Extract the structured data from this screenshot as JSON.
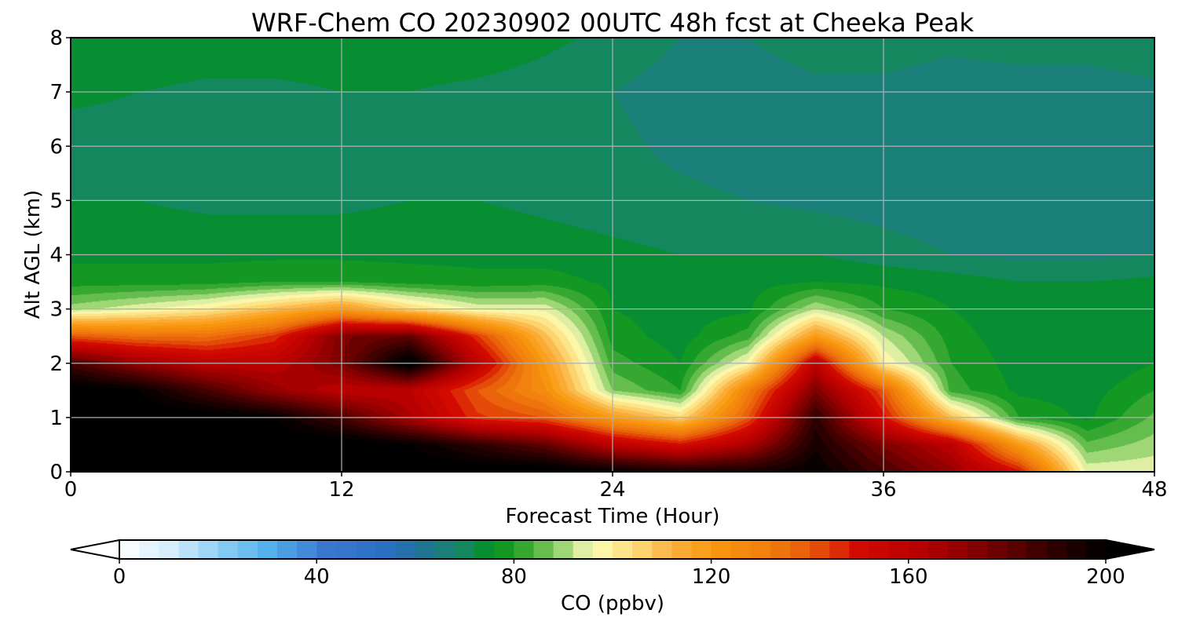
{
  "chart_data": {
    "type": "heatmap",
    "title": "WRF-Chem CO  20230902 00UTC 48h fcst at Cheeka Peak",
    "xlabel": "Forecast Time (Hour)",
    "ylabel": "Alt AGL (km)",
    "xlim": [
      0,
      48
    ],
    "ylim": [
      0,
      8
    ],
    "xticks": [
      0,
      12,
      24,
      36,
      48
    ],
    "yticks": [
      0,
      1,
      2,
      3,
      4,
      5,
      6,
      7,
      8
    ],
    "grid": true,
    "x": [
      0,
      3,
      6,
      9,
      12,
      15,
      18,
      21,
      24,
      27,
      30,
      33,
      36,
      39,
      42,
      45,
      48
    ],
    "y": [
      0,
      0.5,
      1,
      1.5,
      2,
      2.5,
      3,
      3.5,
      4,
      5,
      6,
      7,
      8
    ],
    "z": [
      [
        205,
        205,
        205,
        205,
        205,
        205,
        205,
        205,
        200,
        195,
        195,
        200,
        185,
        170,
        150,
        95,
        95
      ],
      [
        205,
        205,
        205,
        205,
        205,
        200,
        190,
        180,
        160,
        150,
        165,
        195,
        175,
        160,
        120,
        85,
        90
      ],
      [
        205,
        205,
        205,
        200,
        185,
        165,
        145,
        140,
        120,
        105,
        140,
        190,
        150,
        110,
        80,
        75,
        85
      ],
      [
        205,
        200,
        185,
        170,
        160,
        160,
        140,
        125,
        88,
        80,
        130,
        175,
        140,
        82,
        75,
        74,
        80
      ],
      [
        185,
        170,
        160,
        160,
        175,
        205,
        160,
        120,
        82,
        76,
        98,
        160,
        100,
        80,
        74,
        72,
        76
      ],
      [
        140,
        135,
        135,
        145,
        175,
        180,
        145,
        110,
        78,
        74,
        82,
        120,
        92,
        78,
        73,
        72,
        74
      ],
      [
        90,
        95,
        100,
        110,
        120,
        105,
        95,
        95,
        76,
        74,
        75,
        92,
        80,
        76,
        73,
        72,
        74
      ],
      [
        78,
        78,
        78,
        80,
        80,
        78,
        77,
        78,
        75,
        74,
        74,
        76,
        75,
        74,
        72,
        72,
        73
      ],
      [
        75,
        75,
        75,
        75,
        75,
        75,
        75,
        74,
        73,
        72,
        72,
        72,
        70,
        68,
        67,
        67,
        68
      ],
      [
        72,
        72,
        71,
        71,
        71,
        72,
        72,
        71,
        70,
        69,
        68,
        67,
        66,
        65,
        64,
        64,
        64
      ],
      [
        70,
        70,
        69,
        69,
        70,
        71,
        71,
        70,
        69,
        67,
        66,
        66,
        66,
        65,
        65,
        64,
        65
      ],
      [
        73,
        72,
        71,
        71,
        72,
        72,
        71,
        70,
        68,
        66,
        66,
        67,
        67,
        66,
        66,
        66,
        67
      ],
      [
        76,
        76,
        75,
        75,
        75,
        75,
        75,
        73,
        71,
        68,
        68,
        70,
        70,
        69,
        70,
        70,
        71
      ]
    ],
    "colorbar": {
      "label": "CO  (ppbv)",
      "min": 0,
      "max": 200,
      "ticks": [
        0,
        40,
        80,
        120,
        160,
        200
      ],
      "extend": "both",
      "colors": [
        [
          0,
          "#ffffff"
        ],
        [
          10,
          "#d6eefc"
        ],
        [
          20,
          "#8fd0f5"
        ],
        [
          30,
          "#55b1ec"
        ],
        [
          42,
          "#3a78d0"
        ],
        [
          55,
          "#2a6ec0"
        ],
        [
          62,
          "#1f7690"
        ],
        [
          70,
          "#15875f"
        ],
        [
          76,
          "#00901c"
        ],
        [
          82,
          "#36a832"
        ],
        [
          88,
          "#7cc85a"
        ],
        [
          93,
          "#d4eba0"
        ],
        [
          97,
          "#fcfab0"
        ],
        [
          105,
          "#fcd974"
        ],
        [
          112,
          "#fbb040"
        ],
        [
          120,
          "#f99a10"
        ],
        [
          132,
          "#f07c0c"
        ],
        [
          140,
          "#e85a0a"
        ],
        [
          150,
          "#d20a00"
        ],
        [
          162,
          "#b80000"
        ],
        [
          175,
          "#7d0000"
        ],
        [
          188,
          "#350000"
        ],
        [
          200,
          "#000000"
        ]
      ]
    }
  }
}
